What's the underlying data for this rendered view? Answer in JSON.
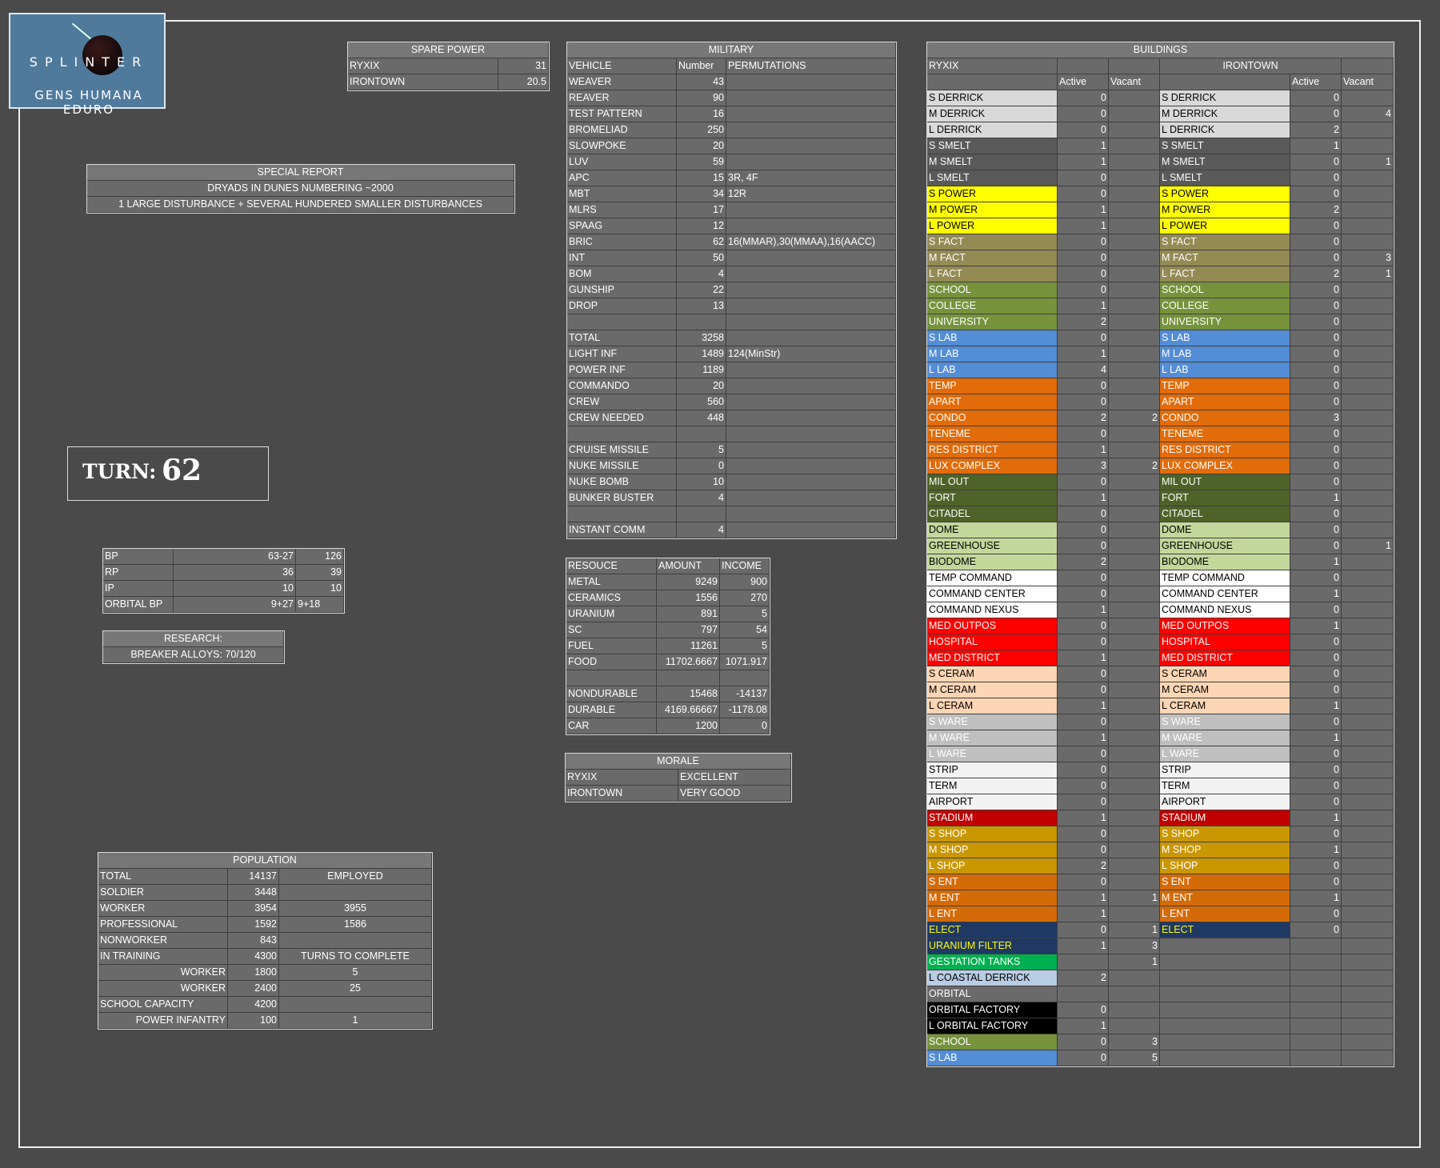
{
  "logo": {
    "word": "SPLINTER",
    "motto": "GENS HUMANA EDURO"
  },
  "spare_power": {
    "title": "SPARE POWER",
    "rows": [
      [
        "RYXIX",
        "31"
      ],
      [
        "IRONTOWN",
        "20.5"
      ]
    ]
  },
  "special_report": {
    "title": "SPECIAL REPORT",
    "lines": [
      "DRYADS IN DUNES NUMBERING ~2000",
      "1  LARGE DISTURBANCE + SEVERAL HUNDERED SMALLER DISTURBANCES"
    ]
  },
  "turn": {
    "label": "TURN:",
    "value": "62"
  },
  "points": {
    "rows": [
      [
        "BP",
        "63-27",
        "126"
      ],
      [
        "RP",
        "36",
        "39"
      ],
      [
        "IP",
        "10",
        "10"
      ],
      [
        "ORBITAL BP",
        "9+27",
        "9+18"
      ]
    ]
  },
  "research": {
    "title": "RESEARCH:",
    "value": "BREAKER ALLOYS: 70/120"
  },
  "military": {
    "title": "MILITARY",
    "headers": [
      "VEHICLE",
      "Number",
      "PERMUTATIONS"
    ],
    "rows": [
      [
        "WEAVER",
        "43",
        ""
      ],
      [
        "REAVER",
        "90",
        ""
      ],
      [
        "TEST PATTERN",
        "16",
        ""
      ],
      [
        "BROMELIAD",
        "250",
        ""
      ],
      [
        "SLOWPOKE",
        "20",
        ""
      ],
      [
        "LUV",
        "59",
        ""
      ],
      [
        "APC",
        "15",
        "3R, 4F"
      ],
      [
        "MBT",
        "34",
        "12R"
      ],
      [
        "MLRS",
        "17",
        ""
      ],
      [
        "SPAAG",
        "12",
        ""
      ],
      [
        "BRIC",
        "62",
        "16(MMAR),30(MMAA),16(AACC)"
      ],
      [
        "INT",
        "50",
        ""
      ],
      [
        "BOM",
        "4",
        ""
      ],
      [
        "GUNSHIP",
        "22",
        ""
      ],
      [
        "DROP",
        "13",
        ""
      ],
      [
        "",
        "",
        ""
      ],
      [
        "TOTAL",
        "3258",
        ""
      ],
      [
        "LIGHT INF",
        "1489",
        "124(MinStr)"
      ],
      [
        "POWER INF",
        "1189",
        ""
      ],
      [
        "COMMANDO",
        "20",
        ""
      ],
      [
        "CREW",
        "560",
        ""
      ],
      [
        "CREW NEEDED",
        "448",
        ""
      ],
      [
        "",
        "",
        ""
      ],
      [
        "CRUISE MISSILE",
        "5",
        ""
      ],
      [
        "NUKE MISSILE",
        "0",
        ""
      ],
      [
        "NUKE BOMB",
        "10",
        ""
      ],
      [
        "BUNKER BUSTER",
        "4",
        ""
      ],
      [
        "",
        "",
        ""
      ],
      [
        "INSTANT COMM",
        "4",
        ""
      ]
    ]
  },
  "resources": {
    "headers": [
      "RESOUCE",
      "AMOUNT",
      "INCOME"
    ],
    "rows": [
      [
        "METAL",
        "9249",
        "900"
      ],
      [
        "CERAMICS",
        "1556",
        "270"
      ],
      [
        "URANIUM",
        "891",
        "5"
      ],
      [
        "SC",
        "797",
        "54"
      ],
      [
        "FUEL",
        "11261",
        "5"
      ],
      [
        "FOOD",
        "11702.6667",
        "1071.917"
      ],
      [
        "",
        "",
        ""
      ],
      [
        "NONDURABLE",
        "15468",
        "-14137"
      ],
      [
        "DURABLE",
        "4169.66667",
        "-1178.08"
      ],
      [
        "CAR",
        "1200",
        "0"
      ]
    ]
  },
  "morale": {
    "title": "MORALE",
    "rows": [
      [
        "RYXIX",
        "EXCELLENT"
      ],
      [
        "IRONTOWN",
        "VERY GOOD"
      ]
    ]
  },
  "population": {
    "title": "POPULATION",
    "rows": [
      [
        "TOTAL",
        "14137",
        "EMPLOYED"
      ],
      [
        "SOLDIER",
        "3448",
        ""
      ],
      [
        "WORKER",
        "3954",
        "3955"
      ],
      [
        "PROFESSIONAL",
        "1592",
        "1586"
      ],
      [
        "NONWORKER",
        "843",
        ""
      ],
      [
        "IN TRAINING",
        "4300",
        "TURNS TO COMPLETE"
      ],
      [
        "WORKER",
        "1800",
        "5"
      ],
      [
        "WORKER",
        "2400",
        "25"
      ],
      [
        "SCHOOL CAPACITY",
        "4200",
        ""
      ],
      [
        "POWER INFANTRY",
        "100",
        "1"
      ]
    ]
  },
  "buildings": {
    "title": "BUILDINGS",
    "city_a": "RYXIX",
    "city_b": "IRONTOWN",
    "active_label": "Active",
    "vacant_label": "Vacant",
    "colors": {
      "lightgrey": "#d9d9d9",
      "darkgrey": "#595959",
      "yellow": "#ffff00",
      "olive": "#948a54",
      "green": "#76933c",
      "blue": "#538dd5",
      "orange": "#e26b0a",
      "darkgreen": "#4f6228",
      "sage": "#c4d79b",
      "white": "#ffffff",
      "red": "#ff0000",
      "peach": "#fcd5b4",
      "silver": "#bfbfbf",
      "paper": "#f2f2f2",
      "crimson": "#c00000",
      "gold": "#c99700",
      "rust": "#d46b08",
      "navy": "#1f3864",
      "brightgreen": "#00b050",
      "paleblue": "#b8cce4",
      "black": "#000000",
      "gray": "#6a6a6a"
    },
    "rows": [
      {
        "a": "S DERRICK",
        "aa": "0",
        "av": "",
        "b": "S DERRICK",
        "ba": "0",
        "bv": "",
        "ca": "lightgrey",
        "cb": "lightgrey"
      },
      {
        "a": "M DERRICK",
        "aa": "0",
        "av": "",
        "b": "M DERRICK",
        "ba": "0",
        "bv": "4",
        "ca": "lightgrey",
        "cb": "lightgrey"
      },
      {
        "a": "L DERRICK",
        "aa": "0",
        "av": "",
        "b": "L DERRICK",
        "ba": "2",
        "bv": "",
        "ca": "lightgrey",
        "cb": "lightgrey"
      },
      {
        "a": "S SMELT",
        "aa": "1",
        "av": "",
        "b": "S SMELT",
        "ba": "1",
        "bv": "",
        "ca": "darkgrey",
        "cb": "darkgrey"
      },
      {
        "a": "M SMELT",
        "aa": "1",
        "av": "",
        "b": "M SMELT",
        "ba": "0",
        "bv": "1",
        "ca": "darkgrey",
        "cb": "darkgrey"
      },
      {
        "a": "L SMELT",
        "aa": "0",
        "av": "",
        "b": "L SMELT",
        "ba": "0",
        "bv": "",
        "ca": "darkgrey",
        "cb": "darkgrey"
      },
      {
        "a": "S POWER",
        "aa": "0",
        "av": "",
        "b": "S POWER",
        "ba": "0",
        "bv": "",
        "ca": "yellow",
        "cb": "yellow"
      },
      {
        "a": "M POWER",
        "aa": "1",
        "av": "",
        "b": "M POWER",
        "ba": "2",
        "bv": "",
        "ca": "yellow",
        "cb": "yellow"
      },
      {
        "a": "L POWER",
        "aa": "1",
        "av": "",
        "b": "L POWER",
        "ba": "0",
        "bv": "",
        "ca": "yellow",
        "cb": "yellow"
      },
      {
        "a": "S FACT",
        "aa": "0",
        "av": "",
        "b": "S FACT",
        "ba": "0",
        "bv": "",
        "ca": "olive",
        "cb": "olive"
      },
      {
        "a": "M FACT",
        "aa": "0",
        "av": "",
        "b": "M FACT",
        "ba": "0",
        "bv": "3",
        "ca": "olive",
        "cb": "olive"
      },
      {
        "a": "L FACT",
        "aa": "0",
        "av": "",
        "b": "L FACT",
        "ba": "2",
        "bv": "1",
        "ca": "olive",
        "cb": "olive"
      },
      {
        "a": "SCHOOL",
        "aa": "0",
        "av": "",
        "b": "SCHOOL",
        "ba": "0",
        "bv": "",
        "ca": "green",
        "cb": "green"
      },
      {
        "a": "COLLEGE",
        "aa": "1",
        "av": "",
        "b": "COLLEGE",
        "ba": "0",
        "bv": "",
        "ca": "green",
        "cb": "green"
      },
      {
        "a": "UNIVERSITY",
        "aa": "2",
        "av": "",
        "b": "UNIVERSITY",
        "ba": "0",
        "bv": "",
        "ca": "green",
        "cb": "green"
      },
      {
        "a": "S LAB",
        "aa": "0",
        "av": "",
        "b": "S LAB",
        "ba": "0",
        "bv": "",
        "ca": "blue",
        "cb": "blue"
      },
      {
        "a": "M LAB",
        "aa": "1",
        "av": "",
        "b": "M LAB",
        "ba": "0",
        "bv": "",
        "ca": "blue",
        "cb": "blue"
      },
      {
        "a": "L LAB",
        "aa": "4",
        "av": "",
        "b": "L LAB",
        "ba": "0",
        "bv": "",
        "ca": "blue",
        "cb": "blue"
      },
      {
        "a": "TEMP",
        "aa": "0",
        "av": "",
        "b": "TEMP",
        "ba": "0",
        "bv": "",
        "ca": "orange",
        "cb": "orange"
      },
      {
        "a": "APART",
        "aa": "0",
        "av": "",
        "b": "APART",
        "ba": "0",
        "bv": "",
        "ca": "orange",
        "cb": "orange"
      },
      {
        "a": "CONDO",
        "aa": "2",
        "av": "2",
        "b": "CONDO",
        "ba": "3",
        "bv": "",
        "ca": "orange",
        "cb": "orange"
      },
      {
        "a": "TENEME",
        "aa": "0",
        "av": "",
        "b": "TENEME",
        "ba": "0",
        "bv": "",
        "ca": "orange",
        "cb": "orange"
      },
      {
        "a": "RES DISTRICT",
        "aa": "1",
        "av": "",
        "b": "RES DISTRICT",
        "ba": "0",
        "bv": "",
        "ca": "orange",
        "cb": "orange"
      },
      {
        "a": "LUX COMPLEX",
        "aa": "3",
        "av": "2",
        "b": "LUX COMPLEX",
        "ba": "0",
        "bv": "",
        "ca": "orange",
        "cb": "orange"
      },
      {
        "a": "MIL OUT",
        "aa": "0",
        "av": "",
        "b": "MIL OUT",
        "ba": "0",
        "bv": "",
        "ca": "darkgreen",
        "cb": "darkgreen"
      },
      {
        "a": "FORT",
        "aa": "1",
        "av": "",
        "b": "FORT",
        "ba": "1",
        "bv": "",
        "ca": "darkgreen",
        "cb": "darkgreen"
      },
      {
        "a": "CITADEL",
        "aa": "0",
        "av": "",
        "b": "CITADEL",
        "ba": "0",
        "bv": "",
        "ca": "darkgreen",
        "cb": "darkgreen"
      },
      {
        "a": "DOME",
        "aa": "0",
        "av": "",
        "b": "DOME",
        "ba": "0",
        "bv": "",
        "ca": "sage",
        "cb": "sage"
      },
      {
        "a": "GREENHOUSE",
        "aa": "0",
        "av": "",
        "b": "GREENHOUSE",
        "ba": "0",
        "bv": "1",
        "ca": "sage",
        "cb": "sage"
      },
      {
        "a": "BIODOME",
        "aa": "2",
        "av": "",
        "b": "BIODOME",
        "ba": "1",
        "bv": "",
        "ca": "sage",
        "cb": "sage"
      },
      {
        "a": "TEMP COMMAND",
        "aa": "0",
        "av": "",
        "b": "TEMP COMMAND",
        "ba": "0",
        "bv": "",
        "ca": "white",
        "cb": "white"
      },
      {
        "a": "COMMAND CENTER",
        "aa": "0",
        "av": "",
        "b": "COMMAND CENTER",
        "ba": "1",
        "bv": "",
        "ca": "white",
        "cb": "white"
      },
      {
        "a": "COMMAND NEXUS",
        "aa": "1",
        "av": "",
        "b": "COMMAND NEXUS",
        "ba": "0",
        "bv": "",
        "ca": "white",
        "cb": "white"
      },
      {
        "a": "MED OUTPOS",
        "aa": "0",
        "av": "",
        "b": "MED OUTPOS",
        "ba": "1",
        "bv": "",
        "ca": "red",
        "cb": "red"
      },
      {
        "a": "HOSPITAL",
        "aa": "0",
        "av": "",
        "b": "HOSPITAL",
        "ba": "0",
        "bv": "",
        "ca": "red",
        "cb": "red"
      },
      {
        "a": "MED DISTRICT",
        "aa": "1",
        "av": "",
        "b": "MED DISTRICT",
        "ba": "0",
        "bv": "",
        "ca": "red",
        "cb": "red"
      },
      {
        "a": "S CERAM",
        "aa": "0",
        "av": "",
        "b": "S CERAM",
        "ba": "0",
        "bv": "",
        "ca": "peach",
        "cb": "peach"
      },
      {
        "a": "M CERAM",
        "aa": "0",
        "av": "",
        "b": "M CERAM",
        "ba": "0",
        "bv": "",
        "ca": "peach",
        "cb": "peach"
      },
      {
        "a": "L CERAM",
        "aa": "1",
        "av": "",
        "b": "L CERAM",
        "ba": "1",
        "bv": "",
        "ca": "peach",
        "cb": "peach"
      },
      {
        "a": "S WARE",
        "aa": "0",
        "av": "",
        "b": "S WARE",
        "ba": "0",
        "bv": "",
        "ca": "silver",
        "cb": "silver"
      },
      {
        "a": "M WARE",
        "aa": "1",
        "av": "",
        "b": "M WARE",
        "ba": "1",
        "bv": "",
        "ca": "silver",
        "cb": "silver"
      },
      {
        "a": "L WARE",
        "aa": "0",
        "av": "",
        "b": "L WARE",
        "ba": "0",
        "bv": "",
        "ca": "silver",
        "cb": "silver"
      },
      {
        "a": "STRIP",
        "aa": "0",
        "av": "",
        "b": "STRIP",
        "ba": "0",
        "bv": "",
        "ca": "paper",
        "cb": "paper"
      },
      {
        "a": "TERM",
        "aa": "0",
        "av": "",
        "b": "TERM",
        "ba": "0",
        "bv": "",
        "ca": "paper",
        "cb": "paper"
      },
      {
        "a": "AIRPORT",
        "aa": "0",
        "av": "",
        "b": "AIRPORT",
        "ba": "0",
        "bv": "",
        "ca": "paper",
        "cb": "paper"
      },
      {
        "a": "STADIUM",
        "aa": "1",
        "av": "",
        "b": "STADIUM",
        "ba": "1",
        "bv": "",
        "ca": "crimson",
        "cb": "crimson"
      },
      {
        "a": "S SHOP",
        "aa": "0",
        "av": "",
        "b": "S SHOP",
        "ba": "0",
        "bv": "",
        "ca": "gold",
        "cb": "gold"
      },
      {
        "a": "M SHOP",
        "aa": "0",
        "av": "",
        "b": "M SHOP",
        "ba": "1",
        "bv": "",
        "ca": "gold",
        "cb": "gold"
      },
      {
        "a": "L SHOP",
        "aa": "2",
        "av": "",
        "b": "L SHOP",
        "ba": "0",
        "bv": "",
        "ca": "gold",
        "cb": "gold"
      },
      {
        "a": "S ENT",
        "aa": "0",
        "av": "",
        "b": "S ENT",
        "ba": "0",
        "bv": "",
        "ca": "rust",
        "cb": "rust"
      },
      {
        "a": "M ENT",
        "aa": "1",
        "av": "1",
        "b": "M ENT",
        "ba": "1",
        "bv": "",
        "ca": "rust",
        "cb": "rust"
      },
      {
        "a": "L ENT",
        "aa": "1",
        "av": "",
        "b": "L ENT",
        "ba": "0",
        "bv": "",
        "ca": "rust",
        "cb": "rust"
      },
      {
        "a": "ELECT",
        "aa": "0",
        "av": "1",
        "b": "ELECT",
        "ba": "0",
        "bv": "",
        "ca": "navy",
        "cb": "navy"
      },
      {
        "a": "URANIUM FILTER",
        "aa": "1",
        "av": "3",
        "b": "",
        "ba": "",
        "bv": "",
        "ca": "navy",
        "cb": "gray"
      },
      {
        "a": "GESTATION TANKS",
        "aa": "",
        "av": "1",
        "b": "",
        "ba": "",
        "bv": "",
        "ca": "brightgreen",
        "cb": "gray"
      },
      {
        "a": "L COASTAL DERRICK",
        "aa": "2",
        "av": "",
        "b": "",
        "ba": "",
        "bv": "",
        "ca": "paleblue",
        "cb": "gray"
      },
      {
        "a": "ORBITAL",
        "aa": "",
        "av": "",
        "b": "",
        "ba": "",
        "bv": "",
        "ca": "gray",
        "cb": "gray"
      },
      {
        "a": "ORBITAL FACTORY",
        "aa": "0",
        "av": "",
        "b": "",
        "ba": "",
        "bv": "",
        "ca": "black",
        "cb": "gray"
      },
      {
        "a": "L ORBITAL FACTORY",
        "aa": "1",
        "av": "",
        "b": "",
        "ba": "",
        "bv": "",
        "ca": "black",
        "cb": "gray"
      },
      {
        "a": "SCHOOL",
        "aa": "0",
        "av": "3",
        "b": "",
        "ba": "",
        "bv": "",
        "ca": "green",
        "cb": "gray"
      },
      {
        "a": "S LAB",
        "aa": "0",
        "av": "5",
        "b": "",
        "ba": "",
        "bv": "",
        "ca": "blue",
        "cb": "gray"
      }
    ]
  }
}
